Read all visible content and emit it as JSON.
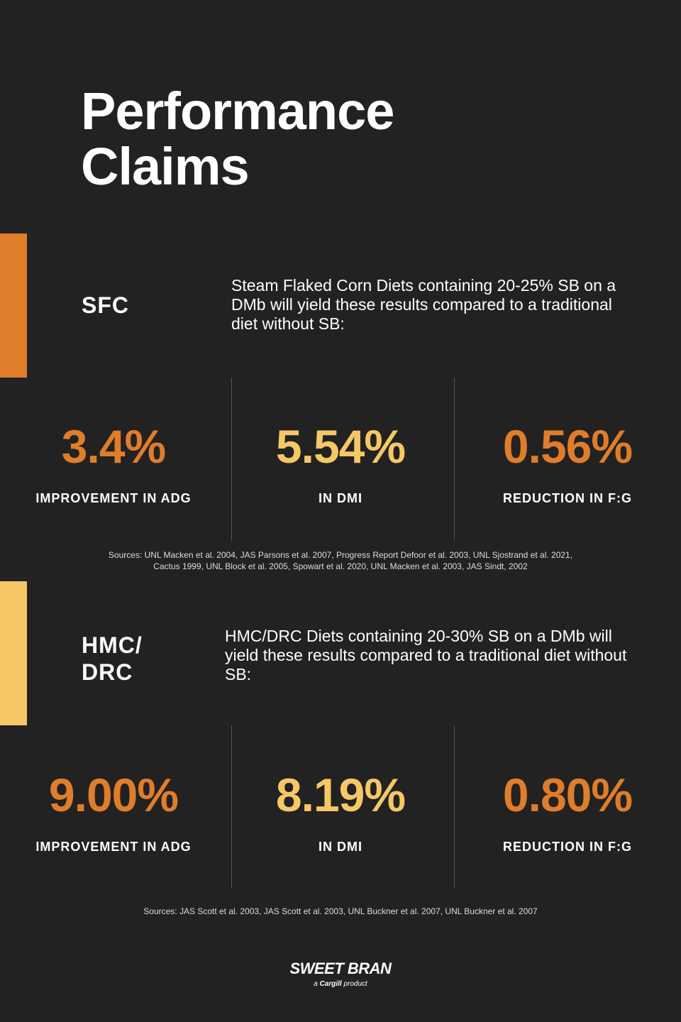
{
  "title": {
    "line1": "Performance",
    "line2": "Claims"
  },
  "colors": {
    "background": "#222222",
    "orange": "#E07D2A",
    "yellow": "#F5C865",
    "divider": "#555555"
  },
  "sections": [
    {
      "label": "SFC",
      "description": "Steam Flaked Corn Diets containing 20-25% SB on a DMb will yield these results compared to a traditional diet without SB:",
      "stats": [
        {
          "value": "3.4%",
          "label": "IMPROVEMENT IN ADG"
        },
        {
          "value": "5.54%",
          "label": "IN DMI"
        },
        {
          "value": "0.56%",
          "label": "REDUCTION IN F:G"
        }
      ],
      "sources": [
        "Sources: UNL Macken et al. 2004, JAS Parsons et al. 2007, Progress Report Defoor et al. 2003, UNL Sjostrand et al. 2021,",
        "Cactus 1999, UNL Block et al. 2005, Spowart et al. 2020, UNL Macken et al. 2003, JAS Sindt, 2002"
      ]
    },
    {
      "label_line1": "HMC/",
      "label_line2": "DRC",
      "description": "HMC/DRC Diets containing 20-30% SB on a DMb will yield these results compared to a traditional diet without SB:",
      "stats": [
        {
          "value": "9.00%",
          "label": "IMPROVEMENT IN ADG"
        },
        {
          "value": "8.19%",
          "label": "IN DMI"
        },
        {
          "value": "0.80%",
          "label": "REDUCTION IN F:G"
        }
      ],
      "sources": [
        "Sources: JAS Scott et al. 2003, JAS Scott et al. 2003, UNL Buckner et al. 2007, UNL Buckner et al. 2007"
      ]
    }
  ],
  "logo": {
    "wordmark": "SWEET BRAN",
    "tagline_prefix": "a",
    "tagline_brand": "Cargill",
    "tagline_suffix": "product"
  }
}
